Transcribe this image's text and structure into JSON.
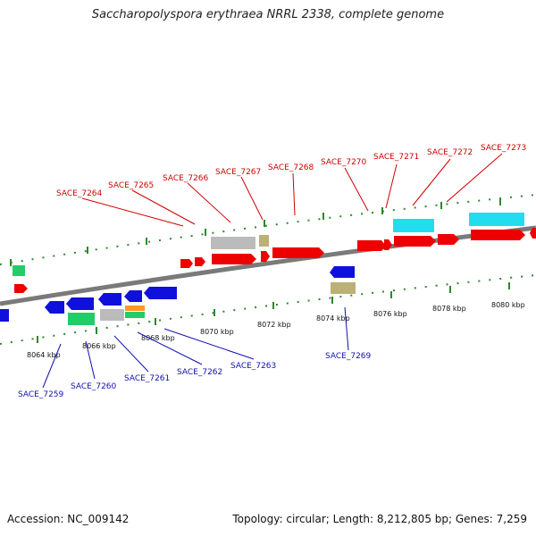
{
  "title": "Saccharopolyspora erythraea NRRL 2338, complete genome",
  "footer": {
    "accession": "Accession: NC_009142",
    "topology": "Topology: circular; Length: 8,212,805 bp; Genes: 7,259"
  },
  "colors": {
    "backbone": "#7a7a7a",
    "forward_gene": "#ee0000",
    "reverse_gene": "#1010dd",
    "label_top": "#d00000",
    "label_bottom": "#1010b0",
    "ticks": "#2a8a2a",
    "rna": "#22cc66",
    "pseudo": "#bbbbbb",
    "misc": "#bbb077",
    "cyan": "#22ddee",
    "orange": "#ff9922"
  },
  "scale": {
    "ticks": [
      "8064 kbp",
      "8066 kbp",
      "8068 kbp",
      "8070 kbp",
      "8072 kbp",
      "8074 kbp",
      "8076 kbp",
      "8078 kbp",
      "8080 kbp"
    ]
  },
  "genes_top": [
    "SACE_7264",
    "SACE_7265",
    "SACE_7266",
    "SACE_7267",
    "SACE_7268",
    "SACE_7270",
    "SACE_7271",
    "SACE_7272",
    "SACE_7273"
  ],
  "genes_bottom": [
    "SACE_7259",
    "SACE_7260",
    "SACE_7261",
    "SACE_7262",
    "SACE_7263",
    "SACE_7269"
  ]
}
